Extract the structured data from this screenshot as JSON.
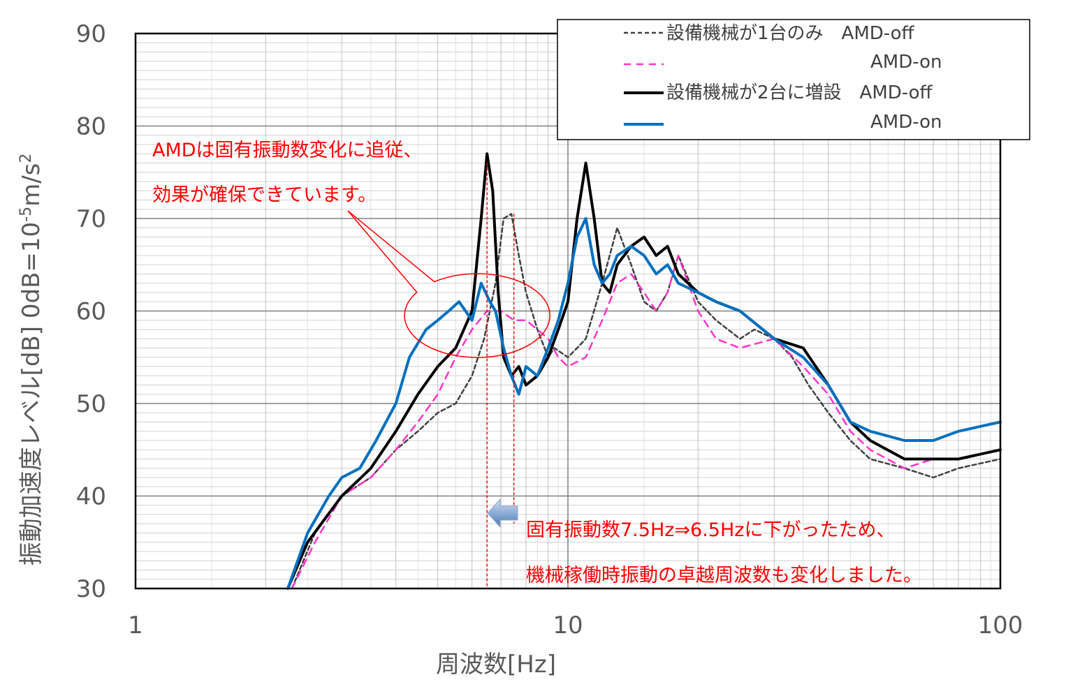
{
  "chart_data": {
    "type": "line",
    "xscale": "log",
    "xlim": [
      1,
      100
    ],
    "ylim": [
      30,
      90
    ],
    "xticks": [
      "1",
      "10",
      "100"
    ],
    "yticks": [
      "30",
      "40",
      "50",
      "60",
      "70",
      "80",
      "90"
    ],
    "xlabel": "周波数[Hz]",
    "ylabel": "振動加速度レベル[dB] 0dB=10",
    "ylabel_exp": "-5",
    "ylabel_unit": "m/s",
    "ylabel_sup": "2",
    "grid": true,
    "legend": {
      "position": "top-right",
      "entries": [
        {
          "text": "設備機械が1台のみ　AMD-off",
          "color": "#404040",
          "dash": "dash"
        },
        {
          "text": "AMD-on",
          "color": "#ff33cc",
          "dash": "dash"
        },
        {
          "text": "設備機械が2台に増設　AMD-off",
          "color": "#000000",
          "dash": "solid"
        },
        {
          "text": "AMD-on",
          "color": "#0070c0",
          "dash": "solid"
        }
      ]
    },
    "annotations": {
      "left_note": [
        "AMDは固有振動数変化に追従、",
        "効果が確保できています。"
      ],
      "bottom_note": [
        "固有振動数7.5Hz⇒6.5Hzに下がったため、",
        "機械稼働時振動の卓越周波数も変化しました。"
      ],
      "vlines_hz": [
        6.5,
        7.5
      ],
      "ellipse_center": [
        6.4,
        59.5
      ]
    },
    "series": [
      {
        "name": "設備機械が1台のみ AMD-off",
        "color": "#404040",
        "dash": "6,4",
        "width": 2.5,
        "x": [
          2.3,
          2.6,
          3.0,
          3.5,
          4.0,
          4.5,
          5.0,
          5.5,
          6.0,
          6.4,
          6.8,
          7.1,
          7.4,
          7.7,
          8.0,
          8.5,
          9.0,
          9.3,
          10.0,
          10.5,
          11.0,
          12.0,
          13.0,
          14.0,
          15.0,
          16.0,
          17.0,
          18.0,
          20.0,
          22.0,
          25.0,
          27.0,
          30.0,
          33.0,
          36.0,
          40.0,
          45.0,
          50.0,
          60.0,
          70.0,
          80.0,
          100.0
        ],
        "y": [
          30,
          36,
          40,
          42,
          45,
          47,
          49,
          50,
          53,
          57,
          63,
          70,
          70.5,
          66,
          62,
          58,
          55,
          56,
          55,
          56,
          57,
          63,
          69,
          65,
          61,
          60,
          62,
          66,
          61,
          59,
          57,
          58,
          57,
          55,
          52,
          49,
          46,
          44,
          43,
          42,
          43,
          44
        ]
      },
      {
        "name": "AMD-on",
        "color": "#ff33cc",
        "dash": "10,8",
        "width": 2.5,
        "x": [
          2.3,
          2.6,
          3.0,
          3.5,
          4.0,
          4.5,
          5.0,
          5.5,
          6.0,
          6.5,
          7.0,
          7.5,
          8.0,
          8.5,
          9.0,
          9.5,
          10.0,
          11.0,
          12.0,
          13.0,
          14.0,
          15.0,
          16.0,
          17.0,
          18.0,
          20.0,
          22.0,
          25.0,
          30.0,
          35.0,
          40.0,
          45.0,
          50.0,
          60.0,
          70.0,
          80.0,
          100.0
        ],
        "y": [
          30,
          35,
          40,
          42,
          45,
          48,
          51,
          55,
          58,
          60,
          60,
          59,
          59,
          58,
          57,
          55,
          54,
          55,
          59,
          63,
          64,
          62,
          60,
          62,
          66,
          60,
          57,
          56,
          57,
          54,
          51,
          47,
          45,
          43,
          44,
          44,
          45
        ]
      },
      {
        "name": "設備機械が2台に増設 AMD-off",
        "color": "#000000",
        "dash": "",
        "width": 4,
        "x": [
          2.25,
          2.5,
          3.0,
          3.5,
          4.0,
          4.5,
          5.0,
          5.5,
          6.0,
          6.3,
          6.5,
          6.7,
          6.9,
          7.1,
          7.4,
          7.7,
          8.0,
          8.5,
          9.0,
          9.5,
          10.0,
          10.5,
          11.0,
          11.5,
          12.0,
          12.5,
          13.0,
          14.0,
          15.0,
          16.0,
          17.0,
          18.0,
          20.0,
          22.0,
          25.0,
          30.0,
          35.0,
          40.0,
          45.0,
          50.0,
          60.0,
          70.0,
          80.0,
          100.0
        ],
        "y": [
          30,
          35,
          40,
          43,
          47,
          51,
          54,
          56,
          60,
          70,
          77,
          73,
          62,
          55,
          53,
          54,
          52,
          53,
          55,
          58,
          61,
          70,
          76,
          70,
          63,
          62,
          65,
          67,
          68,
          66,
          67,
          64,
          62,
          61,
          60,
          57,
          56,
          52,
          48,
          46,
          44,
          44,
          44,
          45
        ]
      },
      {
        "name": "AMD-on",
        "color": "#0070c0",
        "dash": "",
        "width": 4,
        "x": [
          2.25,
          2.5,
          2.8,
          3.0,
          3.3,
          3.6,
          4.0,
          4.3,
          4.7,
          5.0,
          5.3,
          5.6,
          6.0,
          6.3,
          6.6,
          6.8,
          7.1,
          7.4,
          7.7,
          8.0,
          8.5,
          9.0,
          9.5,
          10.0,
          10.5,
          11.0,
          11.5,
          12.0,
          12.5,
          13.0,
          14.0,
          15.0,
          16.0,
          17.0,
          18.0,
          20.0,
          22.0,
          25.0,
          30.0,
          35.0,
          40.0,
          45.0,
          50.0,
          60.0,
          70.0,
          80.0,
          100.0
        ],
        "y": [
          30,
          36,
          40,
          42,
          43,
          46,
          50,
          55,
          58,
          59,
          60,
          61,
          59,
          63,
          61,
          60,
          56,
          53,
          51,
          54,
          53,
          56,
          59,
          63,
          68,
          70,
          65,
          63,
          64,
          66,
          67,
          66,
          64,
          65,
          63,
          62,
          61,
          60,
          57,
          55,
          52,
          48,
          47,
          46,
          46,
          47,
          48
        ]
      }
    ]
  }
}
